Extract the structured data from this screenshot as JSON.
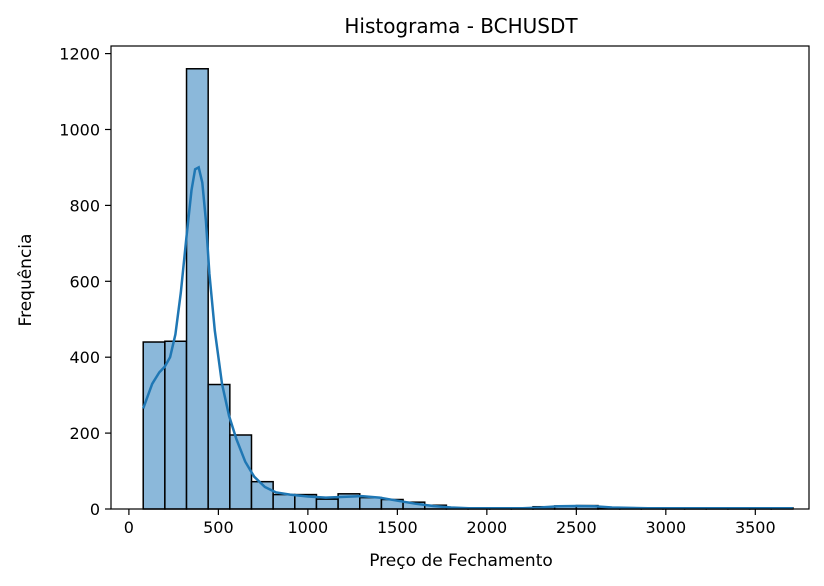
{
  "chart_data": {
    "type": "bar",
    "title": "Histograma - BCHUSDT",
    "xlabel": "Preço de Fechamento",
    "ylabel": "Frequência",
    "xlim": [
      -100,
      3800
    ],
    "ylim": [
      0,
      1220
    ],
    "xticks": [
      0,
      500,
      1000,
      1500,
      2000,
      2500,
      3000,
      3500
    ],
    "yticks": [
      0,
      200,
      400,
      600,
      800,
      1000,
      1200
    ],
    "bins": [
      {
        "x0": 80,
        "x1": 201,
        "count": 440
      },
      {
        "x0": 201,
        "x1": 322,
        "count": 442
      },
      {
        "x0": 322,
        "x1": 443,
        "count": 1160
      },
      {
        "x0": 443,
        "x1": 564,
        "count": 328
      },
      {
        "x0": 564,
        "x1": 685,
        "count": 195
      },
      {
        "x0": 685,
        "x1": 806,
        "count": 72
      },
      {
        "x0": 806,
        "x1": 927,
        "count": 38
      },
      {
        "x0": 927,
        "x1": 1048,
        "count": 38
      },
      {
        "x0": 1048,
        "x1": 1169,
        "count": 26
      },
      {
        "x0": 1169,
        "x1": 1290,
        "count": 40
      },
      {
        "x0": 1290,
        "x1": 1411,
        "count": 30
      },
      {
        "x0": 1411,
        "x1": 1532,
        "count": 25
      },
      {
        "x0": 1532,
        "x1": 1653,
        "count": 18
      },
      {
        "x0": 1653,
        "x1": 1774,
        "count": 10
      },
      {
        "x0": 1774,
        "x1": 1895,
        "count": 3
      },
      {
        "x0": 1895,
        "x1": 2016,
        "count": 2
      },
      {
        "x0": 2016,
        "x1": 2137,
        "count": 2
      },
      {
        "x0": 2137,
        "x1": 2258,
        "count": 2
      },
      {
        "x0": 2258,
        "x1": 2379,
        "count": 6
      },
      {
        "x0": 2379,
        "x1": 2500,
        "count": 8
      },
      {
        "x0": 2500,
        "x1": 2621,
        "count": 9
      },
      {
        "x0": 2621,
        "x1": 2742,
        "count": 3
      },
      {
        "x0": 2742,
        "x1": 2863,
        "count": 2
      },
      {
        "x0": 2863,
        "x1": 2984,
        "count": 2
      },
      {
        "x0": 2984,
        "x1": 3105,
        "count": 2
      },
      {
        "x0": 3105,
        "x1": 3226,
        "count": 2
      },
      {
        "x0": 3226,
        "x1": 3347,
        "count": 2
      },
      {
        "x0": 3347,
        "x1": 3468,
        "count": 2
      },
      {
        "x0": 3468,
        "x1": 3589,
        "count": 2
      },
      {
        "x0": 3589,
        "x1": 3710,
        "count": 3
      }
    ],
    "kde": {
      "name": "KDE",
      "x": [
        80,
        130,
        170,
        200,
        230,
        260,
        290,
        320,
        350,
        370,
        390,
        410,
        430,
        450,
        480,
        520,
        560,
        600,
        650,
        700,
        760,
        820,
        900,
        1000,
        1100,
        1200,
        1300,
        1400,
        1500,
        1600,
        1700,
        1800,
        1900,
        2000,
        2100,
        2200,
        2300,
        2400,
        2500,
        2600,
        2700,
        2800,
        2900,
        3000,
        3200,
        3400,
        3600,
        3710
      ],
      "y": [
        265,
        330,
        360,
        375,
        400,
        460,
        570,
        710,
        840,
        895,
        900,
        860,
        760,
        620,
        470,
        330,
        245,
        185,
        125,
        85,
        58,
        44,
        38,
        33,
        30,
        32,
        34,
        30,
        22,
        14,
        8,
        4,
        2,
        2,
        2,
        2,
        4,
        7,
        8,
        7,
        4,
        3,
        2,
        2,
        2,
        2,
        2,
        2
      ]
    },
    "bar_fill": "#8bb8da",
    "bar_edge": "#000000",
    "line_color": "#1f77b4",
    "grid": false
  }
}
